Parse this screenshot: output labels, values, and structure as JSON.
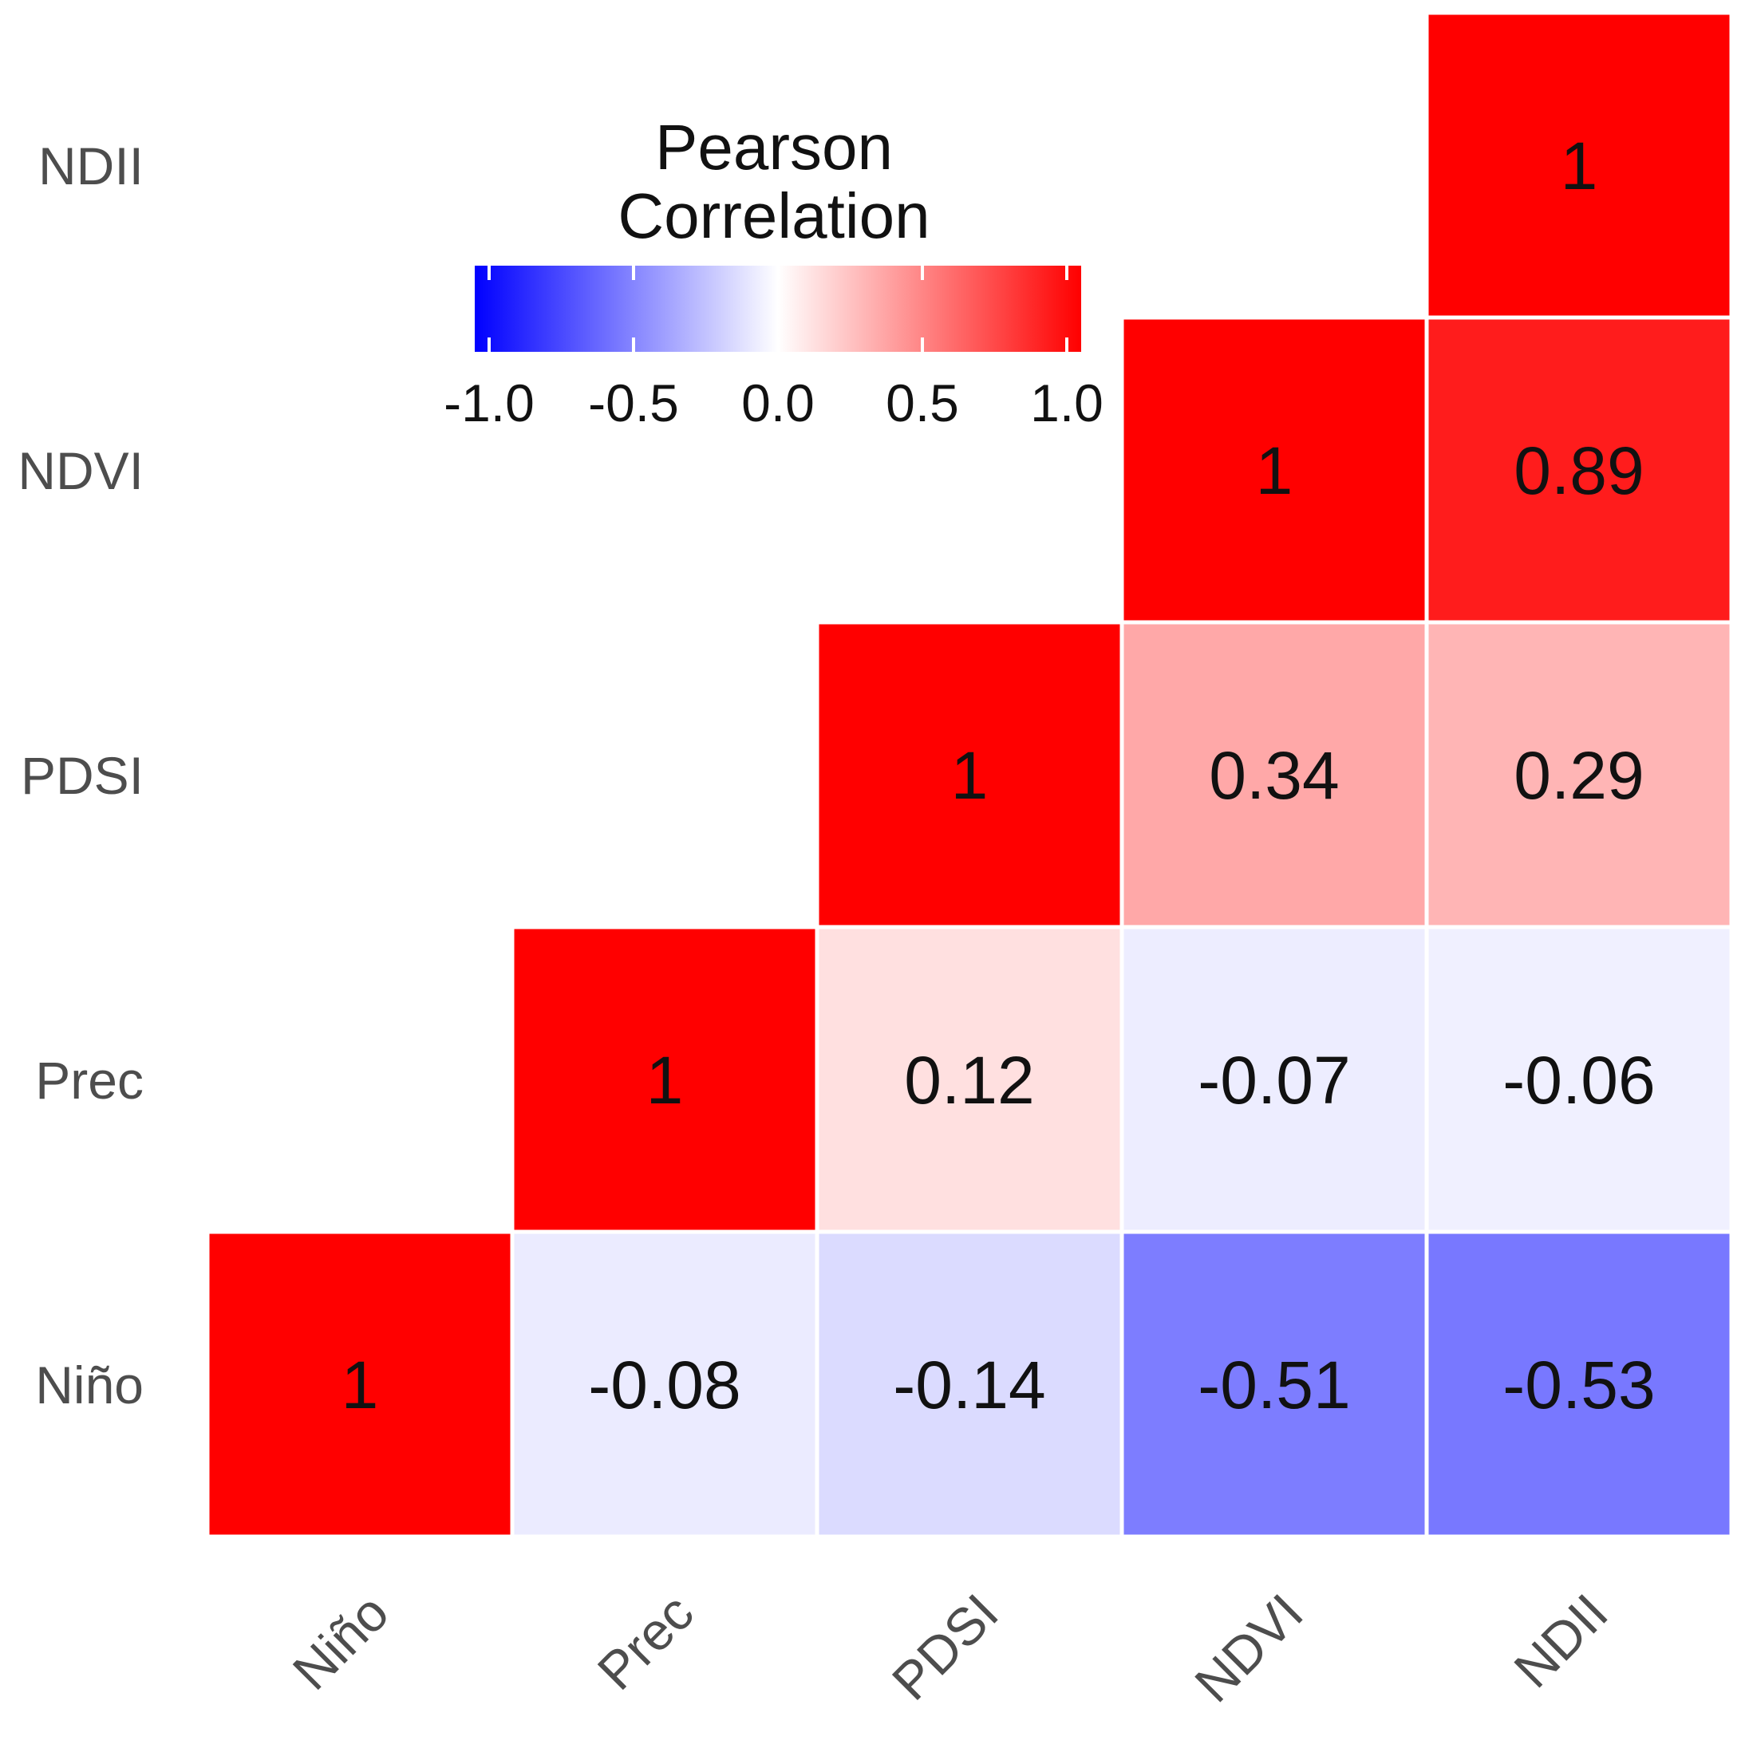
{
  "chart_data": {
    "type": "heatmap",
    "title": "",
    "variables": [
      "Niño",
      "Prec",
      "PDSI",
      "NDVI",
      "NDII"
    ],
    "x_tick_labels": [
      "Niño",
      "Prec",
      "PDSI",
      "NDVI",
      "NDII"
    ],
    "y_tick_labels": [
      "Niño",
      "Prec",
      "PDSI",
      "NDVI",
      "NDII"
    ],
    "cells": [
      {
        "x": "Niño",
        "y": "Niño",
        "value": 1,
        "label": "1"
      },
      {
        "x": "Prec",
        "y": "Niño",
        "value": -0.08,
        "label": "-0.08"
      },
      {
        "x": "PDSI",
        "y": "Niño",
        "value": -0.14,
        "label": "-0.14"
      },
      {
        "x": "NDVI",
        "y": "Niño",
        "value": -0.51,
        "label": "-0.51"
      },
      {
        "x": "NDII",
        "y": "Niño",
        "value": -0.53,
        "label": "-0.53"
      },
      {
        "x": "Prec",
        "y": "Prec",
        "value": 1,
        "label": "1"
      },
      {
        "x": "PDSI",
        "y": "Prec",
        "value": 0.12,
        "label": "0.12"
      },
      {
        "x": "NDVI",
        "y": "Prec",
        "value": -0.07,
        "label": "-0.07"
      },
      {
        "x": "NDII",
        "y": "Prec",
        "value": -0.06,
        "label": "-0.06"
      },
      {
        "x": "PDSI",
        "y": "PDSI",
        "value": 1,
        "label": "1"
      },
      {
        "x": "NDVI",
        "y": "PDSI",
        "value": 0.34,
        "label": "0.34"
      },
      {
        "x": "NDII",
        "y": "PDSI",
        "value": 0.29,
        "label": "0.29"
      },
      {
        "x": "NDVI",
        "y": "NDVI",
        "value": 1,
        "label": "1"
      },
      {
        "x": "NDII",
        "y": "NDVI",
        "value": 0.89,
        "label": "0.89"
      },
      {
        "x": "NDII",
        "y": "NDII",
        "value": 1,
        "label": "1"
      }
    ],
    "legend": {
      "title_line1": "Pearson",
      "title_line2": "Correlation",
      "limits": [
        -1,
        1
      ],
      "ticks": [
        -1.0,
        -0.5,
        0.0,
        0.5,
        1.0
      ],
      "tick_labels": [
        "-1.0",
        "-0.5",
        "0.0",
        "0.5",
        "1.0"
      ],
      "placement": "top-left, inside upper-left empty triangle"
    },
    "colors": {
      "low": "#0000ff",
      "mid": "#ffffff",
      "high": "#ff0000"
    }
  }
}
